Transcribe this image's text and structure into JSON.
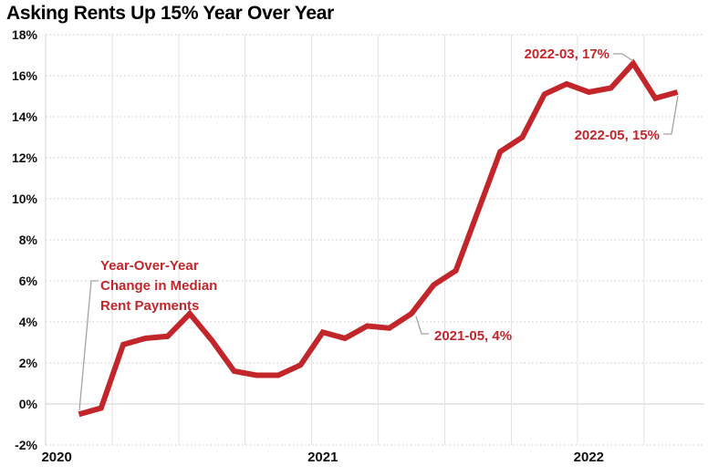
{
  "title": "Asking Rents Up 15% Year Over Year",
  "y_axis": {
    "ticks": [
      "18%",
      "16%",
      "14%",
      "12%",
      "10%",
      "8%",
      "6%",
      "4%",
      "2%",
      "0%",
      "-2%"
    ]
  },
  "x_axis": {
    "ticks": [
      {
        "label": "2020",
        "month": "2020-01"
      },
      {
        "label": "2021",
        "month": "2021-01"
      },
      {
        "label": "2022",
        "month": "2022-01"
      }
    ]
  },
  "annotations": {
    "series_label": {
      "line1": "Year-Over-Year",
      "line2": "Change in Median",
      "line3": "Rent Payments"
    },
    "point_2021_05": {
      "label": "2021-05, 4%"
    },
    "point_2022_03": {
      "label": "2022-03, 17%"
    },
    "point_2022_05": {
      "label": "2022-05, 15%"
    }
  },
  "colors": {
    "line": "#c2262b",
    "annotation_text": "#c2262b",
    "leader": "#a3a3a3",
    "grid_vertical": "#e3e3e3",
    "grid_dotted": "#c9c9c9",
    "zero_line": "#cfcfcf",
    "axis_line": "#d6d6d6",
    "text": "#111111",
    "background": "#ffffff"
  },
  "chart_data": {
    "type": "line",
    "title": "Asking Rents Up 15% Year Over Year",
    "series_name": "Year-Over-Year Change in Median Rent Payments",
    "unit": "percent",
    "x": [
      "2020-02",
      "2020-03",
      "2020-04",
      "2020-05",
      "2020-06",
      "2020-07",
      "2020-08",
      "2020-09",
      "2020-10",
      "2020-11",
      "2020-12",
      "2021-01",
      "2021-02",
      "2021-03",
      "2021-04",
      "2021-05",
      "2021-06",
      "2021-07",
      "2021-08",
      "2021-09",
      "2021-10",
      "2021-11",
      "2021-12",
      "2022-01",
      "2022-02",
      "2022-03",
      "2022-04",
      "2022-05"
    ],
    "values": [
      -0.5,
      -0.2,
      2.9,
      3.2,
      3.3,
      4.4,
      3.1,
      1.6,
      1.4,
      1.4,
      1.9,
      3.5,
      3.2,
      3.8,
      3.7,
      4.4,
      5.8,
      6.5,
      9.4,
      12.3,
      13.0,
      15.1,
      15.6,
      15.2,
      15.4,
      16.6,
      14.9,
      15.2
    ],
    "ylim": [
      -2,
      18
    ],
    "ytick_step": 2,
    "xtick_labels": [
      "2020",
      "2021",
      "2022"
    ],
    "grid": "horizontal dotted every 2%, solid 0% line, vertical quarterly gridlines",
    "legend": "none",
    "annotated_points": [
      {
        "x": "2021-05",
        "label": "2021-05, 4%"
      },
      {
        "x": "2022-03",
        "label": "2022-03, 17%"
      },
      {
        "x": "2022-05",
        "label": "2022-05, 15%"
      }
    ]
  }
}
